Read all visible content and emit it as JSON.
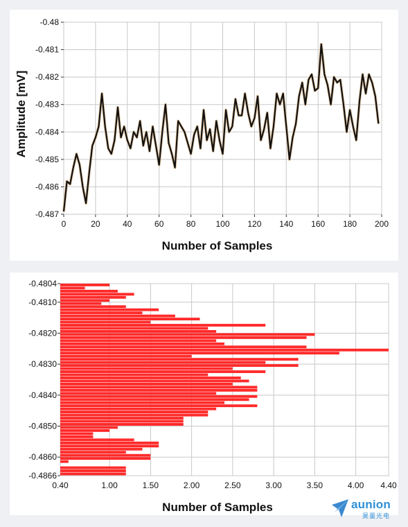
{
  "chart_data": [
    {
      "type": "line",
      "xlabel": "Number of Samples",
      "ylabel": "Amplitude [mV]",
      "xlim": [
        0,
        200
      ],
      "ylim": [
        -0.487,
        -0.48
      ],
      "xticks": [
        "0",
        "20",
        "40",
        "60",
        "80",
        "100",
        "120",
        "140",
        "160",
        "180",
        "200"
      ],
      "yticks": [
        "-0.48",
        "-0.481",
        "-0.482",
        "-0.483",
        "-0.484",
        "-0.485",
        "-0.486",
        "-0.487"
      ],
      "grid": true,
      "x": [
        0,
        2,
        4,
        6,
        8,
        10,
        12,
        14,
        16,
        18,
        20,
        22,
        24,
        26,
        28,
        30,
        32,
        34,
        36,
        38,
        40,
        42,
        44,
        46,
        48,
        50,
        52,
        54,
        56,
        58,
        60,
        62,
        64,
        66,
        68,
        70,
        72,
        74,
        76,
        78,
        80,
        82,
        84,
        86,
        88,
        90,
        92,
        94,
        96,
        98,
        100,
        102,
        104,
        106,
        108,
        110,
        112,
        114,
        116,
        118,
        120,
        122,
        124,
        126,
        128,
        130,
        132,
        134,
        136,
        138,
        140,
        142,
        144,
        146,
        148,
        150,
        152,
        154,
        156,
        158,
        160,
        162,
        164,
        166,
        168,
        170,
        172,
        174,
        176,
        178,
        180,
        182,
        184,
        186,
        188,
        190,
        192,
        194,
        196,
        198
      ],
      "series": [
        {
          "values": [
            -0.4869,
            -0.4858,
            -0.4859,
            -0.4853,
            -0.4848,
            -0.4852,
            -0.486,
            -0.4866,
            -0.4855,
            -0.4845,
            -0.4842,
            -0.4838,
            -0.4826,
            -0.4838,
            -0.4846,
            -0.4848,
            -0.4843,
            -0.4831,
            -0.4842,
            -0.4838,
            -0.4843,
            -0.4846,
            -0.484,
            -0.4842,
            -0.4836,
            -0.4845,
            -0.484,
            -0.4847,
            -0.4838,
            -0.4845,
            -0.4852,
            -0.484,
            -0.483,
            -0.4844,
            -0.4848,
            -0.4853,
            -0.4836,
            -0.4838,
            -0.484,
            -0.4844,
            -0.4848,
            -0.4841,
            -0.4838,
            -0.4846,
            -0.4832,
            -0.4843,
            -0.4839,
            -0.4847,
            -0.4836,
            -0.4843,
            -0.4848,
            -0.4832,
            -0.484,
            -0.4838,
            -0.4828,
            -0.4834,
            -0.4834,
            -0.4826,
            -0.4833,
            -0.4838,
            -0.4835,
            -0.4827,
            -0.4843,
            -0.4839,
            -0.4833,
            -0.4846,
            -0.4838,
            -0.4826,
            -0.483,
            -0.4826,
            -0.4838,
            -0.485,
            -0.4842,
            -0.4837,
            -0.4827,
            -0.4822,
            -0.483,
            -0.4821,
            -0.4819,
            -0.4825,
            -0.4824,
            -0.4808,
            -0.4819,
            -0.4823,
            -0.483,
            -0.482,
            -0.4822,
            -0.4821,
            -0.483,
            -0.484,
            -0.4832,
            -0.4838,
            -0.4843,
            -0.4829,
            -0.4819,
            -0.4826,
            -0.4819,
            -0.4822,
            -0.4827,
            -0.4837
          ]
        }
      ]
    },
    {
      "type": "bar",
      "orientation": "horizontal",
      "xlabel": "Number of Samples",
      "ylabel": "",
      "xlim": [
        0.4,
        4.4
      ],
      "ylim": [
        -0.4866,
        -0.4804
      ],
      "xticks": [
        "0.40",
        "1.00",
        "1.50",
        "2.00",
        "2.50",
        "3.00",
        "3.50",
        "4.00",
        "4.40"
      ],
      "yticks": [
        "-0.4804",
        "-0.4810",
        "-0.4820",
        "-0.4830",
        "-0.4840",
        "-0.4850",
        "-0.4860",
        "-0.4866"
      ],
      "grid": true,
      "bar_color": "#ff2a2a",
      "categories": [
        -0.48045,
        -0.48055,
        -0.48065,
        -0.48075,
        -0.48085,
        -0.48095,
        -0.48105,
        -0.48115,
        -0.48125,
        -0.48135,
        -0.48145,
        -0.48155,
        -0.48165,
        -0.48175,
        -0.48185,
        -0.48195,
        -0.48205,
        -0.48215,
        -0.48225,
        -0.48235,
        -0.48245,
        -0.48255,
        -0.48265,
        -0.48275,
        -0.48285,
        -0.48295,
        -0.48305,
        -0.48315,
        -0.48325,
        -0.48335,
        -0.48345,
        -0.48355,
        -0.48365,
        -0.48375,
        -0.48385,
        -0.48395,
        -0.48405,
        -0.48415,
        -0.48425,
        -0.48435,
        -0.48445,
        -0.48455,
        -0.48465,
        -0.48475,
        -0.48485,
        -0.48495,
        -0.48505,
        -0.48515,
        -0.48525,
        -0.48535,
        -0.48545,
        -0.48555,
        -0.48565,
        -0.48575,
        -0.48585,
        -0.48595,
        -0.48605,
        -0.48615,
        -0.48625,
        -0.48635,
        -0.48645,
        -0.48655
      ],
      "values": [
        1.0,
        0.7,
        1.1,
        1.3,
        1.2,
        1.0,
        0.9,
        1.2,
        1.6,
        1.4,
        1.8,
        2.1,
        1.5,
        2.9,
        2.2,
        2.3,
        3.5,
        3.4,
        2.3,
        2.4,
        3.4,
        4.4,
        3.8,
        2.0,
        3.3,
        2.9,
        3.3,
        2.5,
        2.9,
        2.2,
        2.6,
        2.7,
        2.5,
        2.8,
        2.8,
        2.3,
        2.8,
        2.7,
        2.4,
        2.8,
        2.3,
        2.2,
        2.2,
        1.9,
        1.9,
        1.9,
        1.1,
        1.0,
        0.8,
        0.8,
        1.3,
        1.6,
        1.6,
        1.4,
        1.2,
        1.5,
        1.5,
        0.5,
        0.4,
        1.2,
        1.2,
        1.2
      ]
    }
  ],
  "logo": {
    "brand": "aunion",
    "sub": "昊量光电"
  }
}
